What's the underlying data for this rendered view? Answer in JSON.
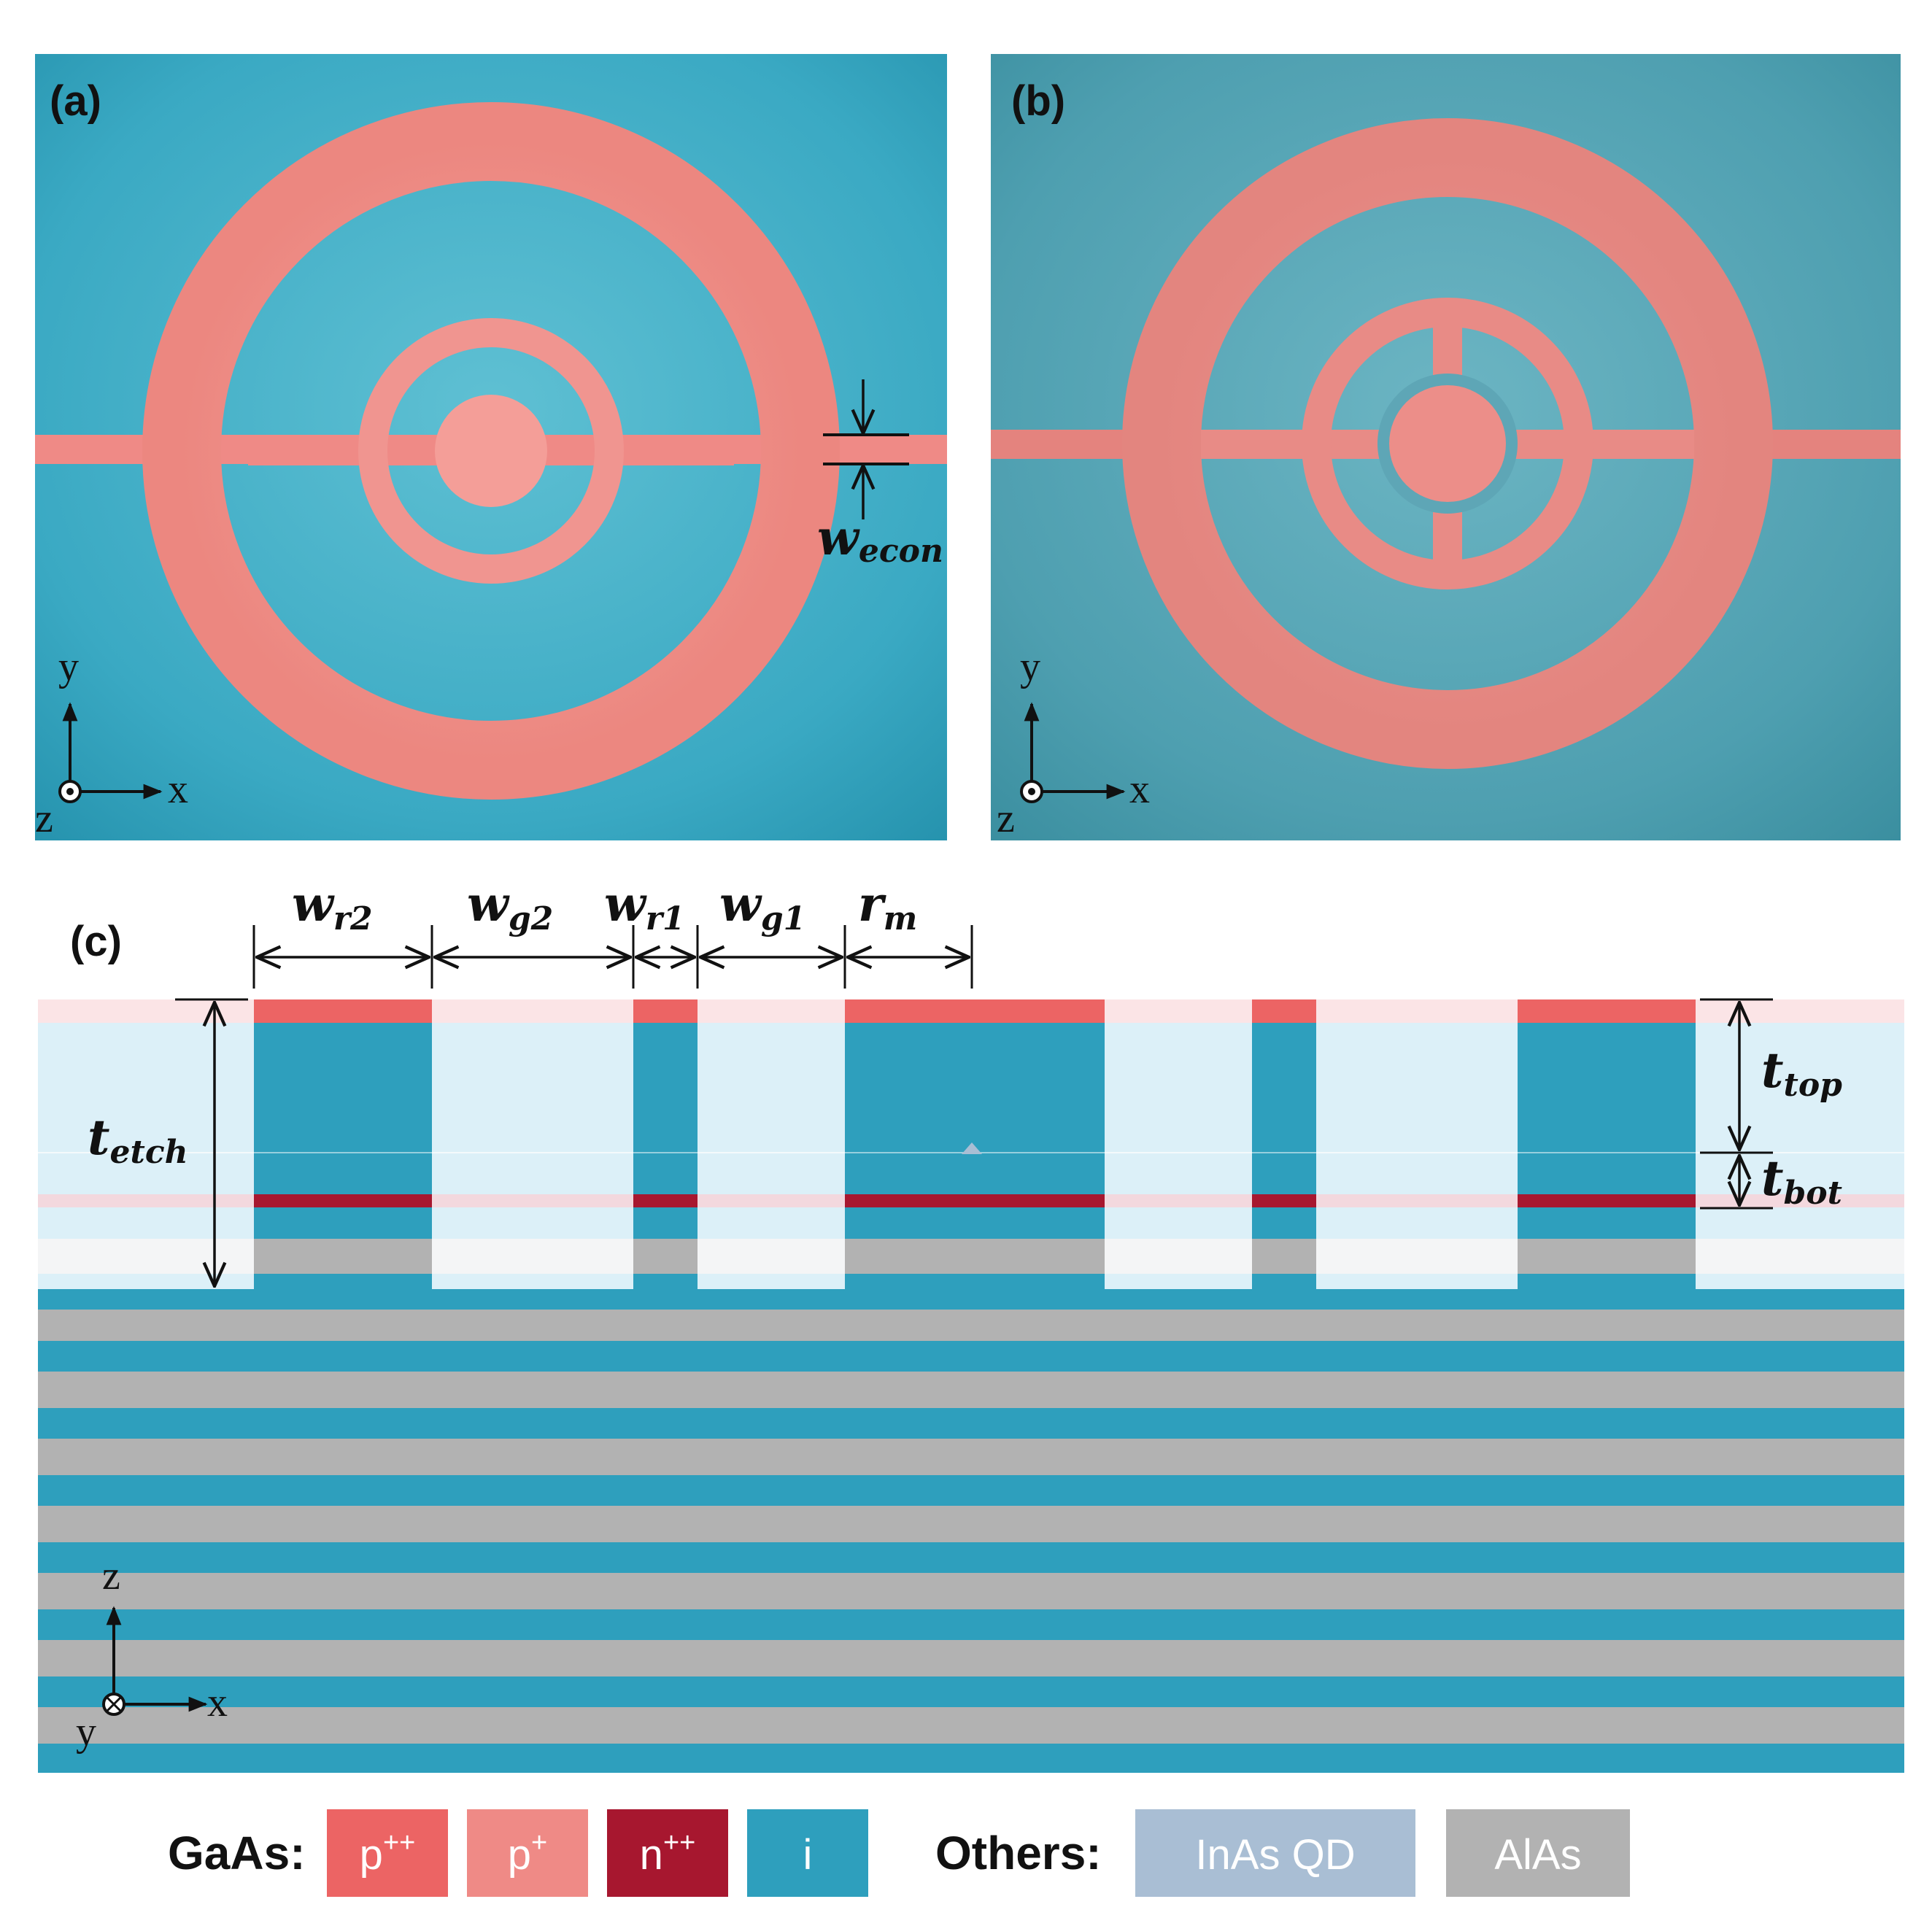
{
  "panels": {
    "a": {
      "label": "(a)"
    },
    "b": {
      "label": "(b)"
    },
    "c": {
      "label": "(c)"
    }
  },
  "axes_top": {
    "x": "x",
    "y": "y",
    "z": "z"
  },
  "axes_side": {
    "x": "x",
    "y": "y",
    "z": "z"
  },
  "dimensions": {
    "w_econ": {
      "main": "w",
      "sub": "econ"
    },
    "w_r2": {
      "main": "w",
      "sub": "r2"
    },
    "w_g2": {
      "main": "w",
      "sub": "g2"
    },
    "w_r1": {
      "main": "w",
      "sub": "r1"
    },
    "w_g1": {
      "main": "w",
      "sub": "g1"
    },
    "r_m": {
      "main": "r",
      "sub": "m"
    },
    "t_etch": {
      "main": "t",
      "sub": "etch"
    },
    "t_top": {
      "main": "t",
      "sub": "top"
    },
    "t_bot": {
      "main": "t",
      "sub": "bot"
    }
  },
  "legend": {
    "gaas_title": "GaAs:",
    "others_title": "Others:",
    "items": [
      {
        "label": "p",
        "sup": "++",
        "color": "#ec6464"
      },
      {
        "label": "p",
        "sup": "+",
        "color": "#ef8a86"
      },
      {
        "label": "n",
        "sup": "++",
        "color": "#a7172f"
      },
      {
        "label": "i",
        "sup": "",
        "color": "#2e9fbd"
      },
      {
        "label": "InAs QD",
        "sup": "",
        "color": "#a9bed4"
      },
      {
        "label": "AlAs",
        "sup": "",
        "color": "#b2b2b2"
      }
    ]
  },
  "colors": {
    "substrate_a": "#4ab3c9",
    "substrate_b": "#5aa9b9",
    "ring_pink": "#ef8a86",
    "intrinsic": "#2e9fbd",
    "alas": "#b2b2b2",
    "etch_fill": "#dcf0f8"
  }
}
